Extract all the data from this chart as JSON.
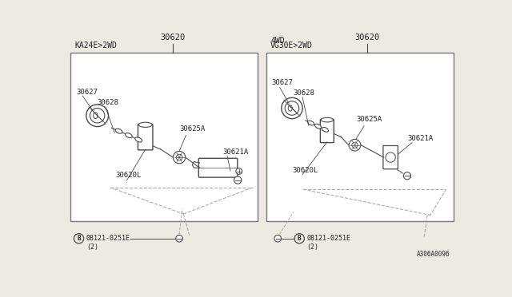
{
  "bg_color": "#ede9e3",
  "panel_bg": "#ffffff",
  "line_color": "#4a4a4a",
  "text_color": "#222222",
  "border_color": "#777777",
  "footer_ref": "A306A0096",
  "left_panel": {
    "title_top": "KA24E>2WD",
    "title_part": "30620",
    "label_30627": "30627",
    "label_30628": "30628",
    "label_30625A": "30625A",
    "label_30621A": "30621A",
    "label_30620L": "30620L"
  },
  "right_panel": {
    "title_top1": "4WD",
    "title_top2": "VG30E>2WD",
    "title_part": "30620",
    "label_30627": "30627",
    "label_30628": "30628",
    "label_30625A": "30625A",
    "label_30621A": "30621A",
    "label_30620L": "30620L"
  },
  "bolt_label": "08121-0251E",
  "bolt_note": "(2)"
}
